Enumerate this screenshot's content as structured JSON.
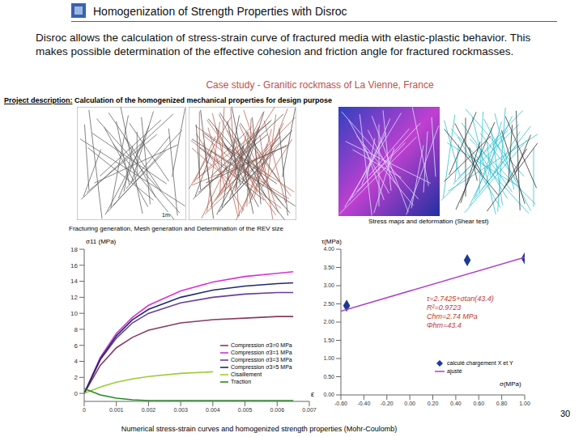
{
  "header": {
    "title": "Homogenization of Strength Properties with Disroc"
  },
  "description": "Disroc allows the calculation of stress-strain curve of fractured media with elastic-plastic behavior. This makes possible determination of the effective cohesion and friction angle for fractured rockmasses.",
  "case_study": "Case study - Granitic rockmass of La Vienne, France",
  "project_description": {
    "label": "Project description:",
    "text": "Calculation of the homogenized mechanical properties for design purpose"
  },
  "images": {
    "caption_left": "Fracturing generation, Mesh generation and Determination of the REV size",
    "scale": "1m",
    "caption_right": "Stress maps and deformation (Shear test)"
  },
  "caption": "Numerical stress-strain curves and homogenized strength properties (Mohr-Coulomb)",
  "page": "30",
  "chart_data": [
    {
      "type": "line",
      "ylabel": "σ11 (MPa)",
      "xlabel": "ε",
      "x": [
        0,
        0.0005,
        0.001,
        0.0015,
        0.002,
        0.003,
        0.004,
        0.005,
        0.006,
        0.0065
      ],
      "xlim": [
        0,
        0.007
      ],
      "xticks": [
        0,
        0.001,
        0.002,
        0.003,
        0.004,
        0.005,
        0.006,
        0.007
      ],
      "ylim": [
        -1,
        18
      ],
      "yticks": [
        0,
        2,
        4,
        6,
        8,
        10,
        12,
        14,
        16,
        18
      ],
      "legend": "lower right",
      "series": [
        {
          "name": "Compression σ3=0 MPa",
          "color": "#8b3a62",
          "values": [
            0,
            3.5,
            5.7,
            7.0,
            7.9,
            8.8,
            9.2,
            9.4,
            9.6,
            9.6
          ]
        },
        {
          "name": "Compression σ3=1 MPa",
          "color": "#d633d6",
          "values": [
            0,
            4.5,
            7.5,
            9.5,
            11.0,
            12.8,
            13.9,
            14.6,
            15.0,
            15.2
          ]
        },
        {
          "name": "Compression σ3=3 MPa",
          "color": "#6a3d9a",
          "values": [
            0,
            4.2,
            6.9,
            8.8,
            10.0,
            11.3,
            12.0,
            12.4,
            12.6,
            12.6
          ]
        },
        {
          "name": "Compression σ3=5 MPa",
          "color": "#1f2a6b",
          "values": [
            0,
            4.3,
            7.2,
            9.2,
            10.5,
            12.0,
            12.9,
            13.4,
            13.7,
            13.8
          ]
        },
        {
          "name": "Cisaillement",
          "color": "#9acd32",
          "values": [
            0,
            0.8,
            1.4,
            1.8,
            2.1,
            2.5,
            2.7,
            null,
            null,
            null
          ]
        },
        {
          "name": "Traction",
          "color": "#228b22",
          "values": [
            0.6,
            -0.2,
            -0.6,
            -0.8,
            -0.9,
            -0.9,
            -0.9,
            -0.9,
            -0.9,
            -0.9
          ]
        }
      ]
    },
    {
      "type": "scatter",
      "ylabel": "τ(MPa)",
      "xlabel": "σ(MPa)",
      "xlim": [
        -0.6,
        1.0
      ],
      "xticks": [
        {
          "value": -0.6,
          "label": "-0.60"
        },
        {
          "value": -0.4,
          "label": "-0.40"
        },
        {
          "value": -0.2,
          "label": "-0.20"
        },
        {
          "value": 0,
          "label": "0.00"
        },
        {
          "value": 0.2,
          "label": "0.20"
        },
        {
          "value": 0.4,
          "label": "0.40"
        },
        {
          "value": 0.6,
          "label": "0.60"
        },
        {
          "value": 0.8,
          "label": "0.80"
        },
        {
          "value": 1.0,
          "label": "1.00"
        }
      ],
      "ylim": [
        0,
        4
      ],
      "yticks": [
        {
          "value": 0,
          "label": "0.00"
        },
        {
          "value": 0.5,
          "label": "0.50"
        },
        {
          "value": 1.0,
          "label": "1.00"
        },
        {
          "value": 1.5,
          "label": "1.50"
        },
        {
          "value": 2.0,
          "label": "2.00"
        },
        {
          "value": 2.5,
          "label": "2.50"
        },
        {
          "value": 3.0,
          "label": "3.00"
        },
        {
          "value": 3.5,
          "label": "3.50"
        },
        {
          "value": 4.0,
          "label": "4.00"
        }
      ],
      "legend": "lower right",
      "annotations": [
        "τ=2.7425+σtan(43.4)",
        "R²=0.9723",
        "Chm=2.74 MPa",
        "Φhm=43.4"
      ],
      "series": [
        {
          "name": "calculé chargement X et Y",
          "type": "scatter",
          "marker": "diamond",
          "color": "#1f3a93",
          "x": [
            -0.55,
            0.5,
            1.0
          ],
          "values": [
            2.45,
            3.7,
            3.75
          ]
        },
        {
          "name": "ajusté",
          "type": "line",
          "color": "#b03fc8",
          "x": [
            -0.6,
            1.0
          ],
          "values": [
            2.3,
            3.78
          ]
        }
      ]
    }
  ]
}
